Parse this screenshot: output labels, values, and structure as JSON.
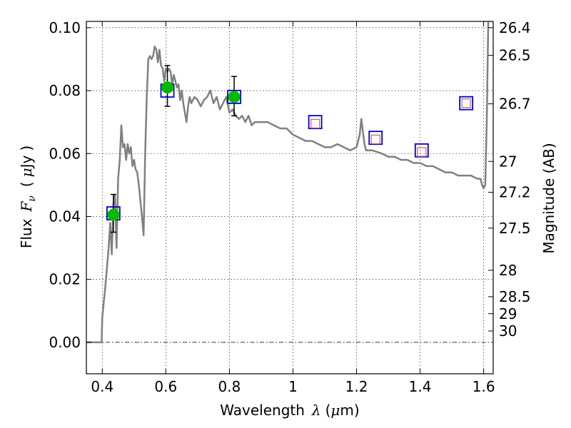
{
  "chart_data": {
    "type": "line",
    "xlabel": "Wavelength  λ (μm)",
    "ylabel": "Flux  Fν  ( μJy )",
    "ylabel_parts": {
      "prefix": "Flux",
      "var": "F",
      "sub": "ν",
      "open": "(",
      "unit_mu": "μ",
      "unit": "Jy",
      "close": ")"
    },
    "xlabel_parts": {
      "prefix": "Wavelength",
      "var": "λ",
      "open": "(",
      "unit_mu": "μ",
      "unit": "m",
      "close": ")"
    },
    "y2label": "Magnitude (AB)",
    "xlim": [
      0.35,
      1.63
    ],
    "ylim": [
      -0.01,
      0.102
    ],
    "grid": true,
    "x_ticks": [
      {
        "v": 0.4,
        "label": "0.4"
      },
      {
        "v": 0.6,
        "label": "0.6"
      },
      {
        "v": 0.8,
        "label": "0.8"
      },
      {
        "v": 1.0,
        "label": "1"
      },
      {
        "v": 1.2,
        "label": "1.2"
      },
      {
        "v": 1.4,
        "label": "1.4"
      },
      {
        "v": 1.6,
        "label": "1.6"
      }
    ],
    "y_ticks": [
      {
        "v": 0.0,
        "label": "0.00"
      },
      {
        "v": 0.02,
        "label": "0.02"
      },
      {
        "v": 0.04,
        "label": "0.04"
      },
      {
        "v": 0.06,
        "label": "0.06"
      },
      {
        "v": 0.08,
        "label": "0.08"
      },
      {
        "v": 0.1,
        "label": "0.10"
      }
    ],
    "mag_ticks": [
      {
        "flux": 0.1,
        "label": "26.4"
      },
      {
        "flux": 0.0912,
        "label": "26.5"
      },
      {
        "flux": 0.0758,
        "label": "26.7"
      },
      {
        "flux": 0.0575,
        "label": "27"
      },
      {
        "flux": 0.0477,
        "label": "27.2"
      },
      {
        "flux": 0.0363,
        "label": "27.5"
      },
      {
        "flux": 0.0229,
        "label": "28"
      },
      {
        "flux": 0.0145,
        "label": "28.5"
      },
      {
        "flux": 0.0091,
        "label": "29"
      },
      {
        "flux": 0.0036,
        "label": "30"
      }
    ],
    "series": [
      {
        "kind": "line",
        "color": "#808080",
        "points": [
          [
            0.35,
            0.0
          ],
          [
            0.39,
            0.0
          ],
          [
            0.398,
            0.0
          ],
          [
            0.4,
            0.008
          ],
          [
            0.41,
            0.018
          ],
          [
            0.42,
            0.03
          ],
          [
            0.425,
            0.038
          ],
          [
            0.43,
            0.028
          ],
          [
            0.435,
            0.044
          ],
          [
            0.44,
            0.047
          ],
          [
            0.445,
            0.03
          ],
          [
            0.45,
            0.052
          ],
          [
            0.455,
            0.058
          ],
          [
            0.46,
            0.069
          ],
          [
            0.465,
            0.062
          ],
          [
            0.47,
            0.063
          ],
          [
            0.475,
            0.058
          ],
          [
            0.48,
            0.063
          ],
          [
            0.485,
            0.06
          ],
          [
            0.49,
            0.062
          ],
          [
            0.495,
            0.056
          ],
          [
            0.5,
            0.058
          ],
          [
            0.505,
            0.055
          ],
          [
            0.51,
            0.054
          ],
          [
            0.515,
            0.05
          ],
          [
            0.52,
            0.045
          ],
          [
            0.525,
            0.04
          ],
          [
            0.53,
            0.034
          ],
          [
            0.535,
            0.06
          ],
          [
            0.54,
            0.078
          ],
          [
            0.545,
            0.09
          ],
          [
            0.55,
            0.091
          ],
          [
            0.555,
            0.09
          ],
          [
            0.56,
            0.091
          ],
          [
            0.565,
            0.094
          ],
          [
            0.57,
            0.093
          ],
          [
            0.575,
            0.089
          ],
          [
            0.58,
            0.093
          ],
          [
            0.585,
            0.088
          ],
          [
            0.59,
            0.087
          ],
          [
            0.595,
            0.083
          ],
          [
            0.6,
            0.087
          ],
          [
            0.605,
            0.086
          ],
          [
            0.61,
            0.087
          ],
          [
            0.615,
            0.086
          ],
          [
            0.62,
            0.082
          ],
          [
            0.625,
            0.085
          ],
          [
            0.63,
            0.083
          ],
          [
            0.635,
            0.081
          ],
          [
            0.64,
            0.082
          ],
          [
            0.645,
            0.077
          ],
          [
            0.65,
            0.08
          ],
          [
            0.655,
            0.076
          ],
          [
            0.66,
            0.073
          ],
          [
            0.665,
            0.07
          ],
          [
            0.67,
            0.075
          ],
          [
            0.675,
            0.078
          ],
          [
            0.68,
            0.076
          ],
          [
            0.69,
            0.078
          ],
          [
            0.7,
            0.077
          ],
          [
            0.71,
            0.075
          ],
          [
            0.72,
            0.077
          ],
          [
            0.73,
            0.078
          ],
          [
            0.74,
            0.08
          ],
          [
            0.75,
            0.076
          ],
          [
            0.76,
            0.078
          ],
          [
            0.77,
            0.074
          ],
          [
            0.78,
            0.076
          ],
          [
            0.79,
            0.078
          ],
          [
            0.8,
            0.073
          ],
          [
            0.81,
            0.074
          ],
          [
            0.82,
            0.072
          ],
          [
            0.83,
            0.071
          ],
          [
            0.84,
            0.072
          ],
          [
            0.85,
            0.07
          ],
          [
            0.86,
            0.072
          ],
          [
            0.87,
            0.069
          ],
          [
            0.88,
            0.07
          ],
          [
            0.89,
            0.07
          ],
          [
            0.9,
            0.07
          ],
          [
            0.92,
            0.07
          ],
          [
            0.94,
            0.069
          ],
          [
            0.96,
            0.068
          ],
          [
            0.98,
            0.068
          ],
          [
            1.0,
            0.066
          ],
          [
            1.02,
            0.065
          ],
          [
            1.04,
            0.064
          ],
          [
            1.06,
            0.064
          ],
          [
            1.08,
            0.063
          ],
          [
            1.1,
            0.062
          ],
          [
            1.12,
            0.062
          ],
          [
            1.14,
            0.063
          ],
          [
            1.16,
            0.062
          ],
          [
            1.18,
            0.061
          ],
          [
            1.2,
            0.062
          ],
          [
            1.21,
            0.066
          ],
          [
            1.215,
            0.071
          ],
          [
            1.22,
            0.067
          ],
          [
            1.225,
            0.063
          ],
          [
            1.23,
            0.061
          ],
          [
            1.25,
            0.061
          ],
          [
            1.28,
            0.06
          ],
          [
            1.3,
            0.059
          ],
          [
            1.32,
            0.059
          ],
          [
            1.34,
            0.058
          ],
          [
            1.36,
            0.058
          ],
          [
            1.38,
            0.057
          ],
          [
            1.4,
            0.057
          ],
          [
            1.42,
            0.056
          ],
          [
            1.44,
            0.056
          ],
          [
            1.46,
            0.055
          ],
          [
            1.48,
            0.054
          ],
          [
            1.5,
            0.054
          ],
          [
            1.52,
            0.053
          ],
          [
            1.54,
            0.053
          ],
          [
            1.56,
            0.053
          ],
          [
            1.58,
            0.052
          ],
          [
            1.59,
            0.052
          ],
          [
            1.595,
            0.05
          ],
          [
            1.6,
            0.049
          ],
          [
            1.605,
            0.05
          ],
          [
            1.61,
            0.072
          ],
          [
            1.615,
            0.105
          ]
        ]
      },
      {
        "kind": "model-squares",
        "color": "#0000cc",
        "points": [
          [
            0.435,
            0.041
          ],
          [
            0.605,
            0.08
          ],
          [
            0.815,
            0.078
          ],
          [
            1.07,
            0.07
          ],
          [
            1.26,
            0.065
          ],
          [
            1.405,
            0.061
          ],
          [
            1.545,
            0.076
          ]
        ]
      },
      {
        "kind": "upper-limit-inner-squares",
        "color": "#d46a6a",
        "points": [
          [
            1.07,
            0.0695
          ],
          [
            1.26,
            0.0645
          ],
          [
            1.405,
            0.0605
          ],
          [
            1.545,
            0.076
          ]
        ]
      },
      {
        "kind": "observed",
        "color": "#00bb00",
        "points": [
          {
            "x": 0.435,
            "y": 0.0405,
            "lo": 0.035,
            "hi": 0.047
          },
          {
            "x": 0.605,
            "y": 0.081,
            "lo": 0.075,
            "hi": 0.088
          },
          {
            "x": 0.815,
            "y": 0.078,
            "lo": 0.072,
            "hi": 0.0845
          }
        ]
      }
    ]
  }
}
